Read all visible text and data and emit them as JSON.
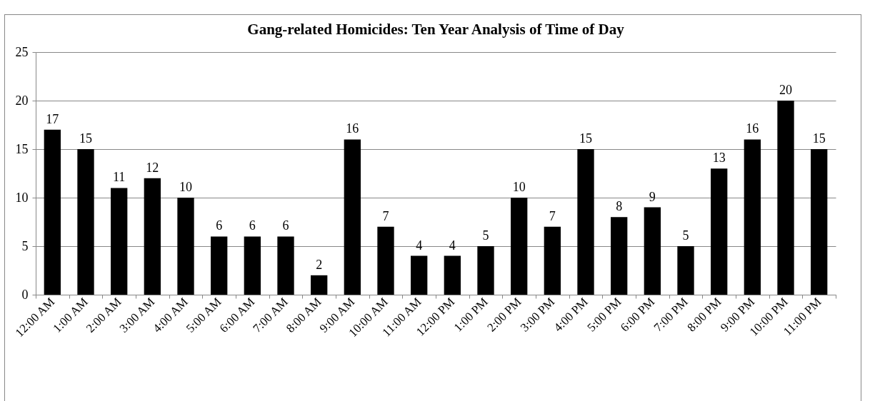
{
  "chart_data": {
    "type": "bar",
    "title": "Gang-related Homicides: Ten Year Analysis of Time of Day",
    "categories": [
      "12:00 AM",
      "1:00 AM",
      "2:00 AM",
      "3:00 AM",
      "4:00 AM",
      "5:00 AM",
      "6:00 AM",
      "7:00 AM",
      "8:00 AM",
      "9:00 AM",
      "10:00 AM",
      "11:00 AM",
      "12:00 PM",
      "1:00 PM",
      "2:00 PM",
      "3:00 PM",
      "4:00 PM",
      "5:00 PM",
      "6:00 PM",
      "7:00 PM",
      "8:00 PM",
      "9:00 PM",
      "10:00 PM",
      "11:00 PM"
    ],
    "values": [
      17,
      15,
      11,
      12,
      10,
      6,
      6,
      6,
      2,
      16,
      7,
      4,
      4,
      5,
      10,
      7,
      15,
      8,
      9,
      5,
      13,
      16,
      20,
      15
    ],
    "color": "#000000",
    "ylim": [
      0,
      25
    ],
    "yticks": [
      0,
      5,
      10,
      15,
      20,
      25
    ],
    "grid": "y",
    "data_labels": true
  }
}
